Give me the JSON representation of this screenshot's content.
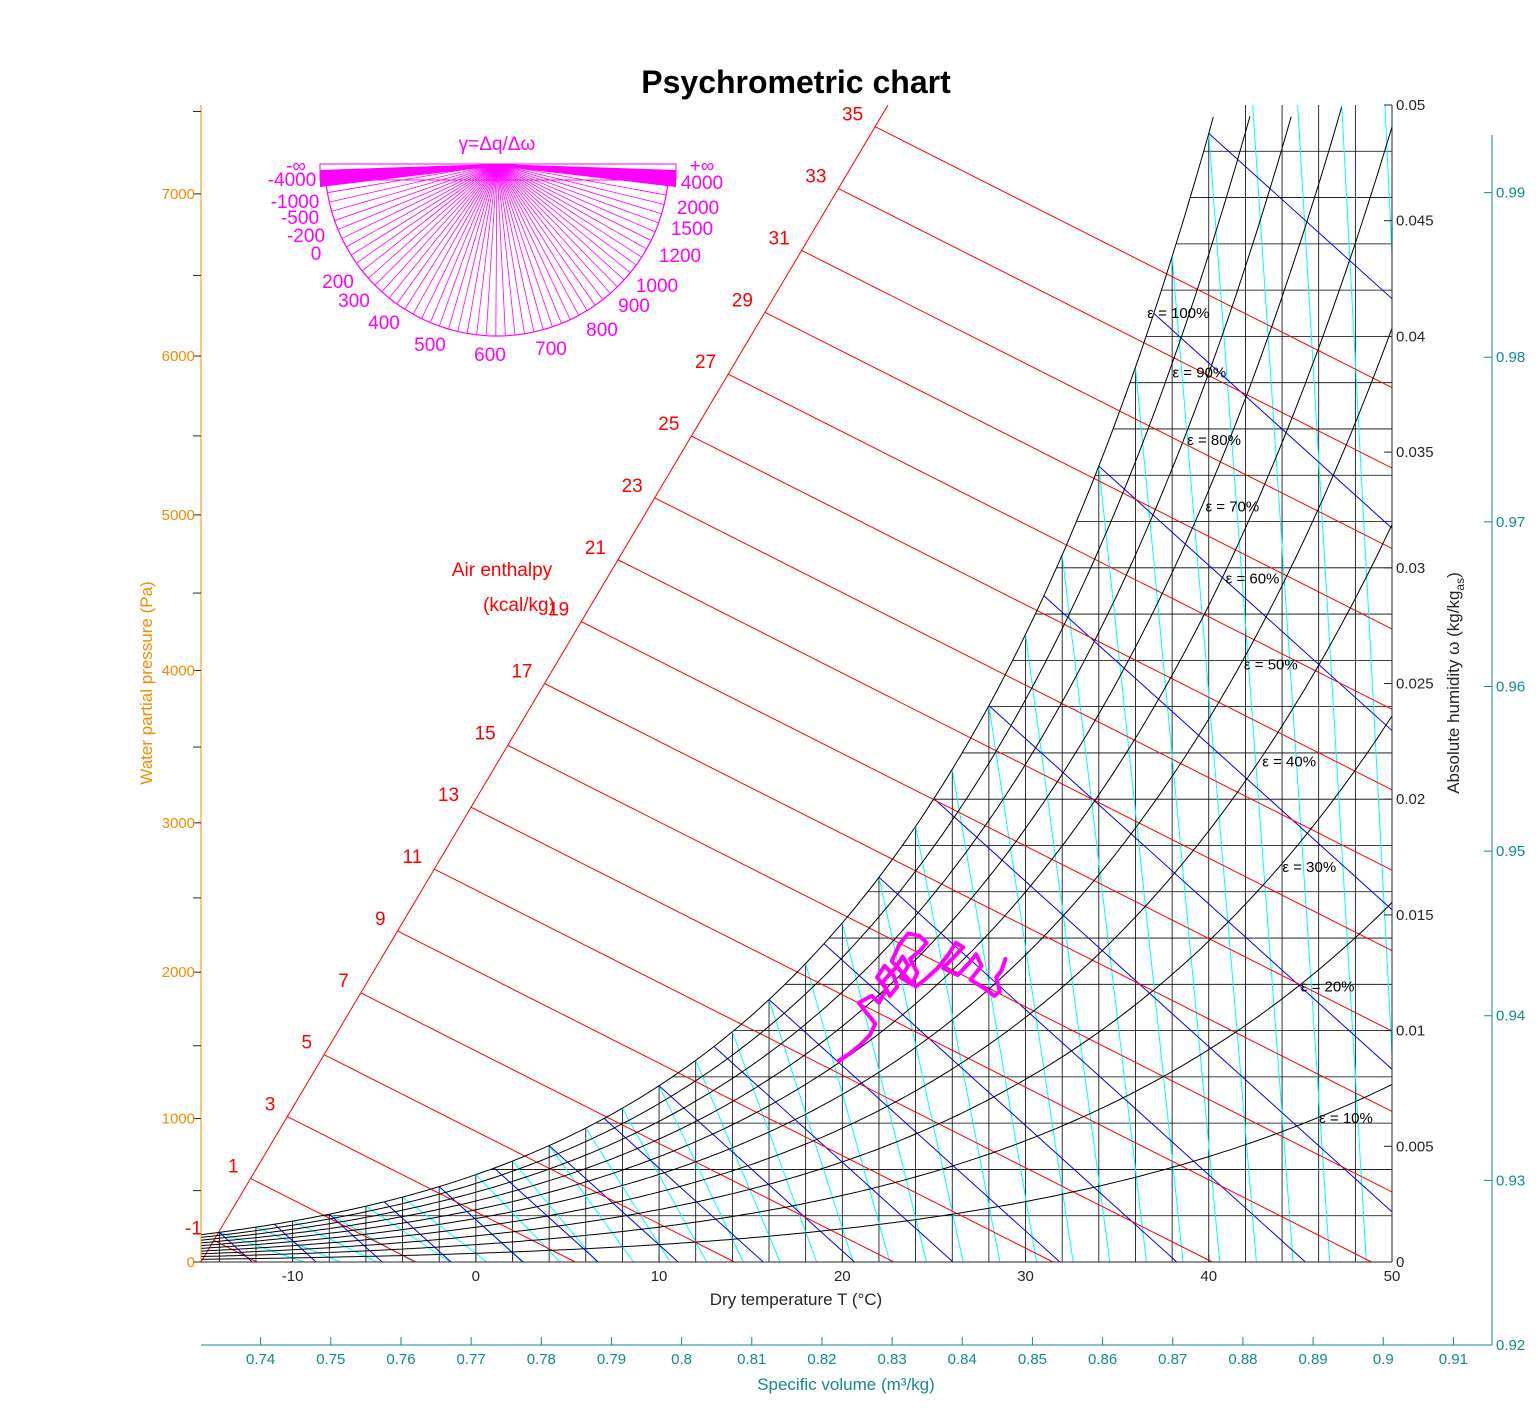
{
  "chart_data": {
    "type": "psychrometric",
    "title": "Psychrometric chart",
    "xlabel": "Dry temperature T (°C)",
    "xlim": [
      -15,
      50
    ],
    "xticks": [
      -10,
      0,
      10,
      20,
      30,
      40,
      50
    ],
    "y_right_label": "Absolute humidity ω (kg/kg",
    "y_right_label_sub": "as",
    "y_right_label_end": ")",
    "y_right_lim": [
      0,
      0.05
    ],
    "y_right_ticks": [
      "0",
      "0.005",
      "0.01",
      "0.015",
      "0.02",
      "0.025",
      "0.03",
      "0.035",
      "0.04",
      "0.045",
      "0.05"
    ],
    "y_left_label": "Water partial pressure (Pa)",
    "y_left_ticks": [
      0,
      1000,
      2000,
      3000,
      4000,
      5000,
      6000,
      7000
    ],
    "x_bottom2_label": "Specific volume (m³/kg)",
    "x_bottom2_ticks": [
      "0.74",
      "0.75",
      "0.76",
      "0.77",
      "0.78",
      "0.79",
      "0.8",
      "0.81",
      "0.82",
      "0.83",
      "0.84",
      "0.85",
      "0.86",
      "0.87",
      "0.88",
      "0.89",
      "0.9",
      "0.91"
    ],
    "y_right2_ticks": [
      "0.92",
      "0.93",
      "0.94",
      "0.95",
      "0.96",
      "0.97",
      "0.98",
      "0.99"
    ],
    "enthalpy_title": "Air enthalpy",
    "enthalpy_unit": "(kcal/kg)",
    "enthalpy_lines": [
      -1,
      1,
      3,
      5,
      7,
      9,
      11,
      13,
      15,
      17,
      19,
      21,
      23,
      25,
      27,
      29,
      31,
      33,
      35
    ],
    "relative_humidity": [
      {
        "value": 100,
        "label": "ε = 100%"
      },
      {
        "value": 90,
        "label": "ε = 90%"
      },
      {
        "value": 80,
        "label": "ε = 80%"
      },
      {
        "value": 70,
        "label": "ε = 70%"
      },
      {
        "value": 60,
        "label": "ε = 60%"
      },
      {
        "value": 50,
        "label": "ε = 50%"
      },
      {
        "value": 40,
        "label": "ε = 40%"
      },
      {
        "value": 30,
        "label": "ε = 30%"
      },
      {
        "value": 20,
        "label": "ε = 20%"
      },
      {
        "value": 10,
        "label": "ε = 10%"
      }
    ],
    "protractor": {
      "title": "γ=Δq/Δω",
      "left_inf": "-∞",
      "right_inf": "+∞",
      "labels": [
        "-4000",
        "-1000",
        "-500",
        "-200",
        "0",
        "200",
        "300",
        "400",
        "500",
        "600",
        "700",
        "800",
        "900",
        "1000",
        "1200",
        "1500",
        "2000",
        "4000"
      ]
    },
    "measurements": {
      "series_color": "#ff00ff",
      "T": [
        19.8,
        20.4,
        21.0,
        21.5,
        21.8,
        21.3,
        20.9,
        21.6,
        22.0,
        22.4,
        21.9,
        22.3,
        22.8,
        23.0,
        22.6,
        22.2,
        22.9,
        23.3,
        23.6,
        23.2,
        23.8,
        24.1,
        23.7,
        24.3,
        24.6,
        24.2,
        23.6,
        23.1,
        22.7,
        23.4,
        24.0,
        24.5,
        25.2,
        25.8,
        26.2,
        26.6,
        26.0,
        25.5,
        26.3,
        26.9,
        27.3,
        27.6,
        27.0,
        27.8,
        28.3,
        28.6,
        28.4,
        28.7,
        28.9
      ],
      "omega": [
        0.0087,
        0.009,
        0.0094,
        0.0098,
        0.0103,
        0.0108,
        0.0112,
        0.0115,
        0.0112,
        0.0118,
        0.0123,
        0.0128,
        0.0124,
        0.0119,
        0.0115,
        0.0121,
        0.0127,
        0.0132,
        0.0128,
        0.0123,
        0.012,
        0.0125,
        0.0131,
        0.0135,
        0.0138,
        0.0141,
        0.0142,
        0.0137,
        0.013,
        0.0124,
        0.0119,
        0.0122,
        0.0127,
        0.0133,
        0.0138,
        0.0136,
        0.0131,
        0.0127,
        0.0124,
        0.0129,
        0.0133,
        0.0128,
        0.0122,
        0.0118,
        0.0115,
        0.0117,
        0.0123,
        0.0126,
        0.0131
      ]
    }
  }
}
